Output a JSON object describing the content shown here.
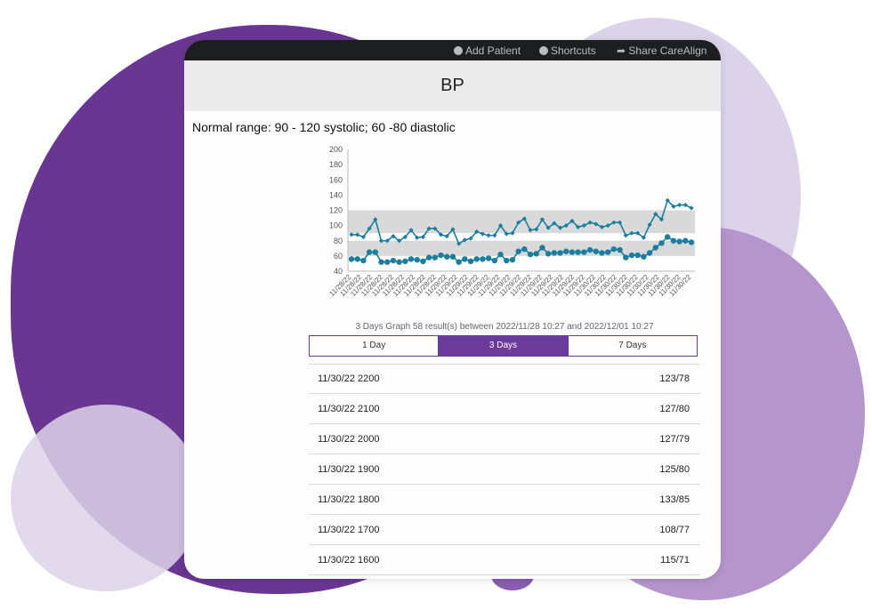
{
  "topbar": {
    "add_patient": "Add Patient",
    "shortcuts": "Shortcuts",
    "share": "Share CareAlign"
  },
  "page": {
    "title": "BP",
    "normal_range": "Normal range: 90 - 120 systolic; 60 -80 diastolic",
    "caption": "3 Days Graph 58 result(s) between 2022/11/28 10:27 and 2022/12/01 10:27"
  },
  "tabs": [
    {
      "label": "1 Day",
      "active": false
    },
    {
      "label": "3 Days",
      "active": true
    },
    {
      "label": "7 Days",
      "active": false
    }
  ],
  "results": [
    {
      "time": "11/30/22 2200",
      "value": "123/78"
    },
    {
      "time": "11/30/22 2100",
      "value": "127/80"
    },
    {
      "time": "11/30/22 2000",
      "value": "127/79"
    },
    {
      "time": "11/30/22 1900",
      "value": "125/80"
    },
    {
      "time": "11/30/22 1800",
      "value": "133/85"
    },
    {
      "time": "11/30/22 1700",
      "value": "108/77"
    },
    {
      "time": "11/30/22 1600",
      "value": "115/71"
    }
  ],
  "chart_data": {
    "type": "line",
    "ylim": [
      40,
      200
    ],
    "yticks": [
      40,
      60,
      80,
      100,
      120,
      140,
      160,
      180,
      200
    ],
    "normal_bands": [
      [
        90,
        120
      ],
      [
        60,
        80
      ]
    ],
    "x_tick_labels": [
      "11/28/22",
      "11/28/22",
      "11/28/22",
      "11/28/22",
      "11/28/22",
      "11/28/22",
      "11/28/22",
      "11/28/22",
      "11/28/22",
      "11/29/22",
      "11/29/22",
      "11/29/22",
      "11/29/22",
      "11/29/22",
      "11/29/22",
      "11/29/22",
      "11/29/22",
      "11/29/22",
      "11/29/22",
      "11/29/22",
      "11/29/22",
      "11/29/22",
      "11/29/22",
      "11/30/22",
      "11/30/22",
      "11/30/22",
      "11/30/22",
      "11/30/22",
      "11/30/22",
      "11/30/22",
      "11/30/22",
      "11/30/22",
      "11/30/22"
    ],
    "series": [
      {
        "key": "systolic",
        "values": [
          88,
          88,
          85,
          96,
          108,
          80,
          80,
          86,
          80,
          85,
          94,
          84,
          85,
          96,
          96,
          88,
          86,
          95,
          76,
          81,
          83,
          92,
          89,
          87,
          87,
          100,
          89,
          90,
          104,
          109,
          94,
          95,
          108,
          97,
          103,
          97,
          100,
          106,
          98,
          100,
          104,
          102,
          98,
          100,
          104,
          104,
          87,
          90,
          90,
          84,
          101,
          115,
          108,
          133,
          125,
          127,
          127,
          123
        ]
      },
      {
        "key": "diastolic",
        "values": [
          56,
          56,
          54,
          65,
          65,
          52,
          52,
          54,
          52,
          53,
          56,
          55,
          53,
          58,
          58,
          61,
          59,
          59,
          52,
          56,
          53,
          56,
          56,
          57,
          54,
          62,
          54,
          55,
          66,
          69,
          62,
          63,
          71,
          63,
          64,
          64,
          66,
          65,
          65,
          65,
          68,
          66,
          64,
          65,
          69,
          68,
          58,
          61,
          61,
          59,
          64,
          71,
          77,
          85,
          80,
          79,
          80,
          78
        ]
      }
    ],
    "colors": {
      "line": "#1a7f9e",
      "band": "#d9d9d9",
      "grid": "#bbbbbb",
      "text": "#555555",
      "accent": "#6b3a9a"
    }
  }
}
